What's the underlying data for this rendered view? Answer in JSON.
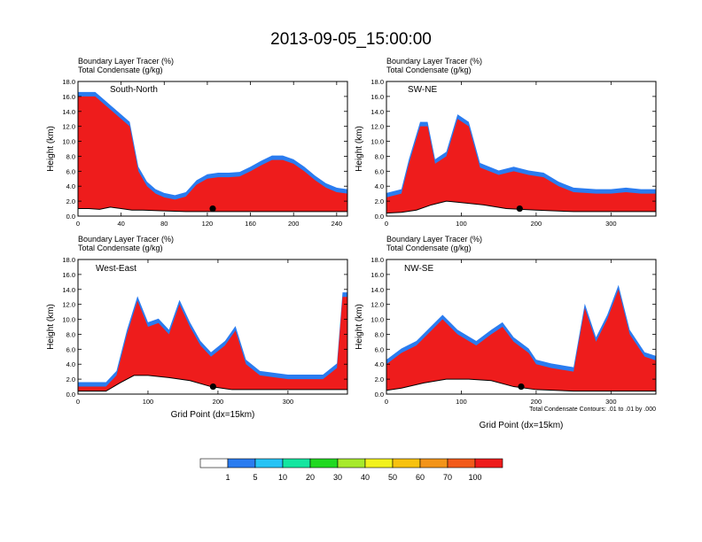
{
  "title": "2013-09-05_15:00:00",
  "panel_header_left": "Boundary Layer Tracer   (%)",
  "panel_header_right": "Total Condensate   (g/kg)",
  "footnote": "Total Condensate Contours: .01 to .01 by .000",
  "colorbar": {
    "colors": [
      "#ffffff",
      "#2a7cf0",
      "#26c3f5",
      "#14e6a0",
      "#21d921",
      "#a7ea2b",
      "#f2f21d",
      "#f7c20f",
      "#f39419",
      "#f25a1a",
      "#ee1c1c"
    ],
    "labels": [
      "1",
      "5",
      "10",
      "20",
      "30",
      "40",
      "50",
      "60",
      "70",
      "100"
    ]
  },
  "chart_data": [
    {
      "type": "heatmap",
      "name": "South-North",
      "xlabel": "",
      "ylabel": "Height (km)",
      "xlim": [
        0,
        250
      ],
      "ylim": [
        0,
        18
      ],
      "xticks": [
        "0",
        "40",
        "80",
        "120",
        "160",
        "200",
        "240"
      ],
      "xtick_values": [
        0,
        40,
        80,
        120,
        160,
        200,
        240
      ],
      "yticks": [
        "0.0",
        "2.0",
        "4.0",
        "6.0",
        "8.0",
        "10.0",
        "12.0",
        "14.0",
        "16.0",
        "18.0"
      ],
      "marker": {
        "x": 125,
        "y": 1.0
      },
      "terrain": [
        [
          0,
          1.0
        ],
        [
          10,
          1.0
        ],
        [
          20,
          0.9
        ],
        [
          30,
          1.2
        ],
        [
          40,
          1.0
        ],
        [
          50,
          0.8
        ],
        [
          60,
          0.8
        ],
        [
          80,
          0.7
        ],
        [
          100,
          0.6
        ],
        [
          120,
          0.6
        ],
        [
          150,
          0.6
        ],
        [
          200,
          0.6
        ],
        [
          250,
          0.6
        ]
      ],
      "tracer_top": [
        [
          0,
          16
        ],
        [
          8,
          16
        ],
        [
          16,
          16
        ],
        [
          24,
          15
        ],
        [
          32,
          14
        ],
        [
          40,
          13
        ],
        [
          48,
          12
        ],
        [
          56,
          6
        ],
        [
          64,
          4
        ],
        [
          72,
          3
        ],
        [
          80,
          2.5
        ],
        [
          90,
          2.2
        ],
        [
          100,
          2.6
        ],
        [
          110,
          4.2
        ],
        [
          120,
          5.0
        ],
        [
          130,
          5.2
        ],
        [
          140,
          5.2
        ],
        [
          150,
          5.3
        ],
        [
          160,
          6.0
        ],
        [
          170,
          6.8
        ],
        [
          180,
          7.5
        ],
        [
          190,
          7.5
        ],
        [
          200,
          7.0
        ],
        [
          210,
          6.0
        ],
        [
          220,
          4.8
        ],
        [
          230,
          3.8
        ],
        [
          240,
          3.2
        ],
        [
          250,
          3.0
        ]
      ]
    },
    {
      "type": "heatmap",
      "name": "SW-NE",
      "xlabel": "",
      "ylabel": "Height (km)",
      "xlim": [
        0,
        360
      ],
      "ylim": [
        0,
        18
      ],
      "xticks": [
        "0",
        "100",
        "200",
        "300"
      ],
      "xtick_values": [
        0,
        100,
        200,
        300
      ],
      "yticks": [
        "0.0",
        "2.0",
        "4.0",
        "6.0",
        "8.0",
        "10.0",
        "12.0",
        "14.0",
        "16.0",
        "18.0"
      ],
      "marker": {
        "x": 178,
        "y": 1.0
      },
      "terrain": [
        [
          0,
          0.4
        ],
        [
          20,
          0.5
        ],
        [
          40,
          0.8
        ],
        [
          60,
          1.5
        ],
        [
          80,
          2.0
        ],
        [
          100,
          1.8
        ],
        [
          130,
          1.5
        ],
        [
          160,
          1.0
        ],
        [
          200,
          0.8
        ],
        [
          250,
          0.6
        ],
        [
          300,
          0.6
        ],
        [
          360,
          0.6
        ]
      ],
      "tracer_top": [
        [
          0,
          2.5
        ],
        [
          20,
          3.0
        ],
        [
          30,
          7.0
        ],
        [
          45,
          12.0
        ],
        [
          55,
          12.0
        ],
        [
          65,
          7.0
        ],
        [
          80,
          8.0
        ],
        [
          95,
          13.0
        ],
        [
          110,
          12.0
        ],
        [
          125,
          6.5
        ],
        [
          150,
          5.5
        ],
        [
          170,
          6.0
        ],
        [
          190,
          5.5
        ],
        [
          210,
          5.2
        ],
        [
          230,
          4.0
        ],
        [
          250,
          3.2
        ],
        [
          280,
          3.0
        ],
        [
          300,
          3.0
        ],
        [
          320,
          3.2
        ],
        [
          340,
          3.0
        ],
        [
          360,
          3.0
        ]
      ]
    },
    {
      "type": "heatmap",
      "name": "West-East",
      "xlabel": "Grid Point (dx=15km)",
      "ylabel": "Height (km)",
      "xlim": [
        0,
        385
      ],
      "ylim": [
        0,
        18
      ],
      "xticks": [
        "0",
        "100",
        "200",
        "300"
      ],
      "xtick_values": [
        0,
        100,
        200,
        300
      ],
      "yticks": [
        "0.0",
        "2.0",
        "4.0",
        "6.0",
        "8.0",
        "10.0",
        "12.0",
        "14.0",
        "16.0",
        "18.0"
      ],
      "marker": {
        "x": 193,
        "y": 1.0
      },
      "terrain": [
        [
          0,
          0.4
        ],
        [
          40,
          0.4
        ],
        [
          60,
          1.5
        ],
        [
          80,
          2.5
        ],
        [
          100,
          2.5
        ],
        [
          130,
          2.2
        ],
        [
          160,
          1.8
        ],
        [
          190,
          1.0
        ],
        [
          220,
          0.6
        ],
        [
          300,
          0.6
        ],
        [
          385,
          0.6
        ]
      ],
      "tracer_top": [
        [
          0,
          1.0
        ],
        [
          40,
          1.0
        ],
        [
          55,
          2.5
        ],
        [
          70,
          8.0
        ],
        [
          85,
          12.5
        ],
        [
          100,
          9.0
        ],
        [
          115,
          9.5
        ],
        [
          130,
          8.0
        ],
        [
          145,
          12.0
        ],
        [
          160,
          9.0
        ],
        [
          175,
          6.5
        ],
        [
          190,
          5.0
        ],
        [
          210,
          6.5
        ],
        [
          225,
          8.5
        ],
        [
          240,
          4.0
        ],
        [
          260,
          2.5
        ],
        [
          300,
          2.0
        ],
        [
          350,
          2.0
        ],
        [
          370,
          3.5
        ],
        [
          378,
          13.0
        ],
        [
          385,
          13.0
        ]
      ]
    },
    {
      "type": "heatmap",
      "name": "NW-SE",
      "xlabel": "Grid Point (dx=15km)",
      "ylabel": "Height (km)",
      "xlim": [
        0,
        360
      ],
      "ylim": [
        0,
        18
      ],
      "xticks": [
        "0",
        "100",
        "200",
        "300"
      ],
      "xtick_values": [
        0,
        100,
        200,
        300
      ],
      "yticks": [
        "0.0",
        "2.0",
        "4.0",
        "6.0",
        "8.0",
        "10.0",
        "12.0",
        "14.0",
        "16.0",
        "18.0"
      ],
      "marker": {
        "x": 180,
        "y": 1.0
      },
      "terrain": [
        [
          0,
          0.5
        ],
        [
          20,
          0.8
        ],
        [
          50,
          1.5
        ],
        [
          80,
          2.0
        ],
        [
          110,
          2.0
        ],
        [
          140,
          1.8
        ],
        [
          170,
          1.0
        ],
        [
          200,
          0.6
        ],
        [
          250,
          0.4
        ],
        [
          300,
          0.4
        ],
        [
          360,
          0.4
        ]
      ],
      "tracer_top": [
        [
          0,
          4.0
        ],
        [
          20,
          5.5
        ],
        [
          40,
          6.5
        ],
        [
          60,
          8.5
        ],
        [
          75,
          10.0
        ],
        [
          95,
          8.0
        ],
        [
          120,
          6.5
        ],
        [
          140,
          8.0
        ],
        [
          155,
          9.0
        ],
        [
          170,
          7.0
        ],
        [
          190,
          5.5
        ],
        [
          200,
          4.0
        ],
        [
          220,
          3.5
        ],
        [
          250,
          3.0
        ],
        [
          265,
          11.5
        ],
        [
          280,
          7.0
        ],
        [
          295,
          10.0
        ],
        [
          310,
          14.0
        ],
        [
          325,
          8.0
        ],
        [
          345,
          5.0
        ],
        [
          360,
          4.5
        ]
      ]
    }
  ]
}
